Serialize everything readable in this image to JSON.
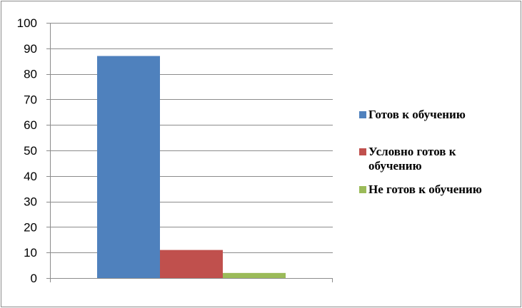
{
  "chart_data": {
    "type": "bar",
    "title": "",
    "xlabel": "",
    "ylabel": "",
    "categories": [
      ""
    ],
    "ylim": [
      0,
      100
    ],
    "yticks": [
      0,
      10,
      20,
      30,
      40,
      50,
      60,
      70,
      80,
      90,
      100
    ],
    "grid": true,
    "legend_position": "right",
    "series": [
      {
        "name": "Готов к обучению",
        "values": [
          87
        ],
        "color": "#4F81BD"
      },
      {
        "name": "Условно готов к обучению",
        "values": [
          11
        ],
        "color": "#C0504D"
      },
      {
        "name": "Не готов к обучению",
        "values": [
          2
        ],
        "color": "#9BBB59"
      }
    ]
  }
}
